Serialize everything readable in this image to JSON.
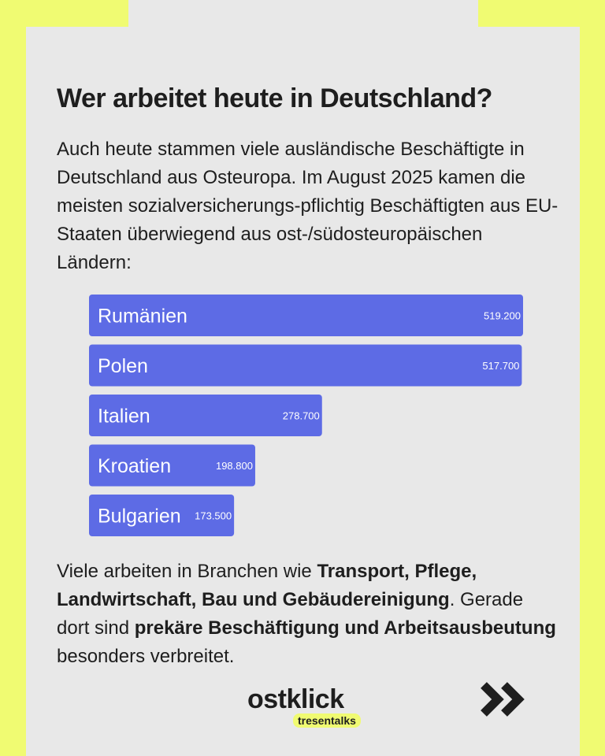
{
  "page": {
    "title": "Wer arbeitet heute in Deutschland?",
    "intro": "Auch heute stammen viele ausländische Beschäftigte in Deutschland aus Osteuropa. Im August 2025 kamen die meisten sozialversicherungs-pflichtig Beschäftigten aus EU-Staaten überwiegend aus ost-/südosteuropäischen Ländern:",
    "outro": {
      "t1": "Viele arbeiten in Branchen wie ",
      "b1": "Transport, Pflege, Landwirtschaft, Bau und Gebäudereinigung",
      "t2": ". Gerade dort sind ",
      "b2": "prekäre Beschäftigung und Arbeitsausbeutung",
      "t3": " besonders verbreitet."
    },
    "logo": {
      "main": "ostklick",
      "sub": "tresentalks"
    },
    "next_icon": "double-chevron-right-icon"
  },
  "colors": {
    "background": "#f0fb72",
    "card": "#e8e8e8",
    "bar": "#5d6be5",
    "text": "#1e1e1e"
  },
  "chart_data": {
    "type": "bar",
    "orientation": "horizontal",
    "categories": [
      "Rumänien",
      "Polen",
      "Italien",
      "Kroatien",
      "Bulgarien"
    ],
    "values": [
      519200,
      517700,
      278700,
      198800,
      173500
    ],
    "value_labels": [
      "519.200",
      "517.700",
      "278.700",
      "198.800",
      "173.500"
    ],
    "title": "",
    "xlabel": "",
    "ylabel": "",
    "grid": false
  }
}
